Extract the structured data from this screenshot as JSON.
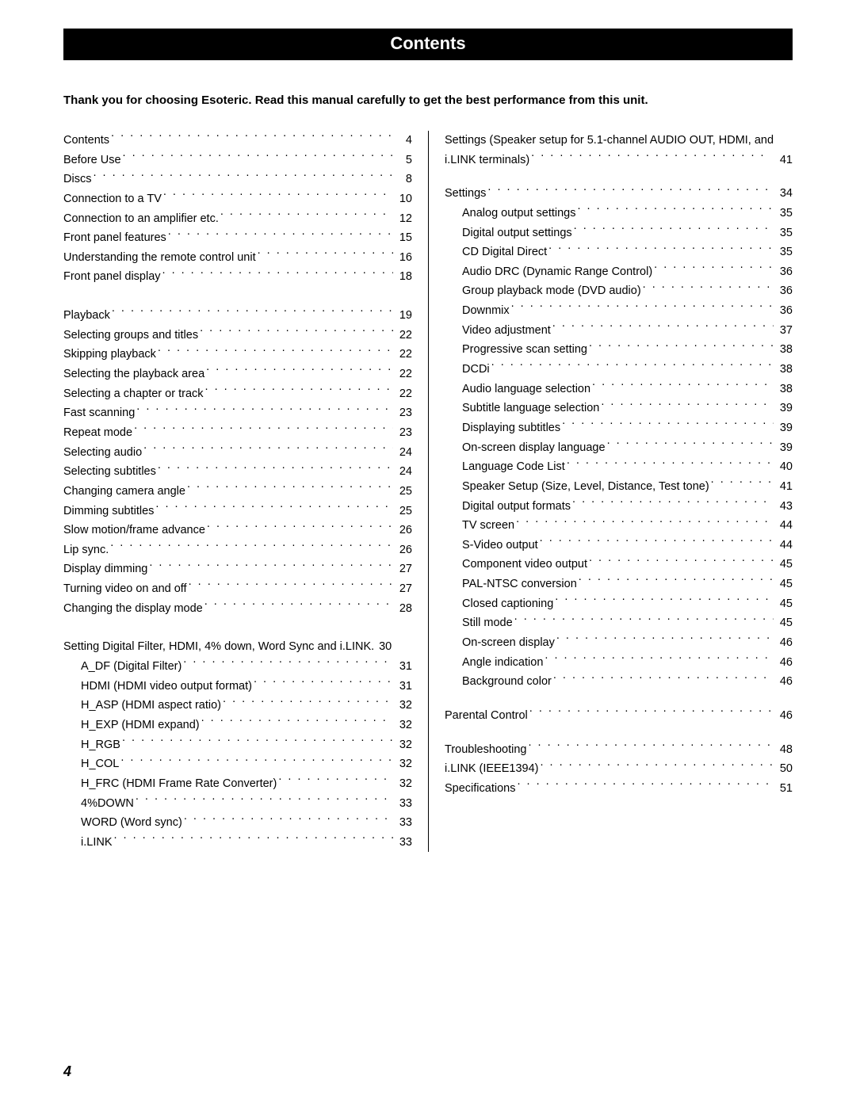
{
  "header": {
    "title": "Contents"
  },
  "intro": "Thank you for choosing Esoteric. Read this manual carefully to get the best performance from this unit.",
  "pageNumber": "4",
  "toc_left": [
    {
      "group": [
        {
          "title": "Contents",
          "page": "4",
          "indent": 0
        },
        {
          "title": "Before Use",
          "page": "5",
          "indent": 0
        },
        {
          "title": "Discs",
          "page": "8",
          "indent": 0
        },
        {
          "title": "Connection to a TV",
          "page": "10",
          "indent": 0
        },
        {
          "title": "Connection to an amplifier etc.",
          "page": "12",
          "indent": 0
        },
        {
          "title": "Front panel features",
          "page": "15",
          "indent": 0
        },
        {
          "title": "Understanding the remote control unit",
          "page": "16",
          "indent": 0
        },
        {
          "title": "Front panel display",
          "page": "18",
          "indent": 0
        }
      ]
    },
    {
      "group": [
        {
          "title": "Playback",
          "page": "19",
          "indent": 0
        },
        {
          "title": "Selecting groups and titles",
          "page": "22",
          "indent": 0
        },
        {
          "title": "Skipping playback",
          "page": "22",
          "indent": 0
        },
        {
          "title": "Selecting the playback area",
          "page": "22",
          "indent": 0
        },
        {
          "title": "Selecting a chapter or track",
          "page": "22",
          "indent": 0
        },
        {
          "title": "Fast scanning",
          "page": "23",
          "indent": 0
        },
        {
          "title": "Repeat mode",
          "page": "23",
          "indent": 0
        },
        {
          "title": "Selecting audio",
          "page": "24",
          "indent": 0
        },
        {
          "title": "Selecting subtitles",
          "page": "24",
          "indent": 0
        },
        {
          "title": "Changing camera angle",
          "page": "25",
          "indent": 0
        },
        {
          "title": "Dimming subtitles",
          "page": "25",
          "indent": 0
        },
        {
          "title": "Slow motion/frame advance",
          "page": "26",
          "indent": 0
        },
        {
          "title": "Lip sync.",
          "page": "26",
          "indent": 0
        },
        {
          "title": "Display dimming",
          "page": "27",
          "indent": 0
        },
        {
          "title": "Turning video on and off",
          "page": "27",
          "indent": 0
        },
        {
          "title": "Changing the display mode",
          "page": "28",
          "indent": 0
        }
      ]
    },
    {
      "group": [
        {
          "title": "Setting Digital Filter, HDMI, 4% down, Word Sync and i.LINK",
          "page": "30",
          "indent": 0,
          "tight": true
        },
        {
          "title": "A_DF (Digital Filter)",
          "page": "31",
          "indent": 1
        },
        {
          "title": "HDMI (HDMI video output format)",
          "page": "31",
          "indent": 1
        },
        {
          "title": "H_ASP (HDMI aspect ratio)",
          "page": "32",
          "indent": 1
        },
        {
          "title": "H_EXP (HDMI expand)",
          "page": "32",
          "indent": 1
        },
        {
          "title": "H_RGB",
          "page": "32",
          "indent": 1
        },
        {
          "title": "H_COL",
          "page": "32",
          "indent": 1
        },
        {
          "title": "H_FRC (HDMI Frame Rate Converter)",
          "page": "32",
          "indent": 1
        },
        {
          "title": "4%DOWN",
          "page": "33",
          "indent": 1
        },
        {
          "title": "WORD (Word sync)",
          "page": "33",
          "indent": 1
        },
        {
          "title": "i.LINK",
          "page": "33",
          "indent": 1
        }
      ]
    }
  ],
  "toc_right": [
    {
      "group": [
        {
          "multiline": true,
          "line1": "Settings (Speaker setup for 5.1-channel AUDIO OUT, HDMI, and",
          "line2": "i.LINK terminals)",
          "page": "41",
          "indent": 0
        }
      ]
    },
    {
      "group": [
        {
          "title": "Settings",
          "page": "34",
          "indent": 0
        },
        {
          "title": "Analog output settings",
          "page": "35",
          "indent": 1
        },
        {
          "title": "Digital output settings",
          "page": "35",
          "indent": 1
        },
        {
          "title": "CD Digital Direct",
          "page": "35",
          "indent": 1
        },
        {
          "title": "Audio DRC (Dynamic Range Control)",
          "page": "36",
          "indent": 1
        },
        {
          "title": "Group playback mode (DVD audio)",
          "page": "36",
          "indent": 1
        },
        {
          "title": "Downmix",
          "page": "36",
          "indent": 1
        },
        {
          "title": "Video adjustment",
          "page": "37",
          "indent": 1
        },
        {
          "title": "Progressive scan setting",
          "page": "38",
          "indent": 1
        },
        {
          "title": "DCDi",
          "page": "38",
          "indent": 1
        },
        {
          "title": "Audio language selection",
          "page": "38",
          "indent": 1
        },
        {
          "title": "Subtitle language selection",
          "page": "39",
          "indent": 1
        },
        {
          "title": "Displaying subtitles",
          "page": "39",
          "indent": 1
        },
        {
          "title": "On-screen display language",
          "page": "39",
          "indent": 1
        },
        {
          "title": "Language Code List",
          "page": "40",
          "indent": 1
        },
        {
          "title": "Speaker Setup (Size, Level, Distance, Test tone)",
          "page": "41",
          "indent": 1
        },
        {
          "title": "Digital output formats",
          "page": "43",
          "indent": 1
        },
        {
          "title": "TV screen",
          "page": "44",
          "indent": 1
        },
        {
          "title": "S-Video output",
          "page": "44",
          "indent": 1
        },
        {
          "title": "Component video output",
          "page": "45",
          "indent": 1
        },
        {
          "title": "PAL-NTSC conversion",
          "page": "45",
          "indent": 1
        },
        {
          "title": "Closed captioning",
          "page": "45",
          "indent": 1
        },
        {
          "title": "Still mode",
          "page": "45",
          "indent": 1
        },
        {
          "title": "On-screen display",
          "page": "46",
          "indent": 1
        },
        {
          "title": "Angle indication",
          "page": "46",
          "indent": 1
        },
        {
          "title": "Background color",
          "page": "46",
          "indent": 1
        }
      ]
    },
    {
      "group": [
        {
          "title": "Parental Control",
          "page": "46",
          "indent": 0
        }
      ]
    },
    {
      "group": [
        {
          "title": "Troubleshooting",
          "page": "48",
          "indent": 0
        },
        {
          "title": "i.LINK (IEEE1394)",
          "page": "50",
          "indent": 0
        },
        {
          "title": "Specifications",
          "page": "51",
          "indent": 0
        }
      ]
    }
  ]
}
